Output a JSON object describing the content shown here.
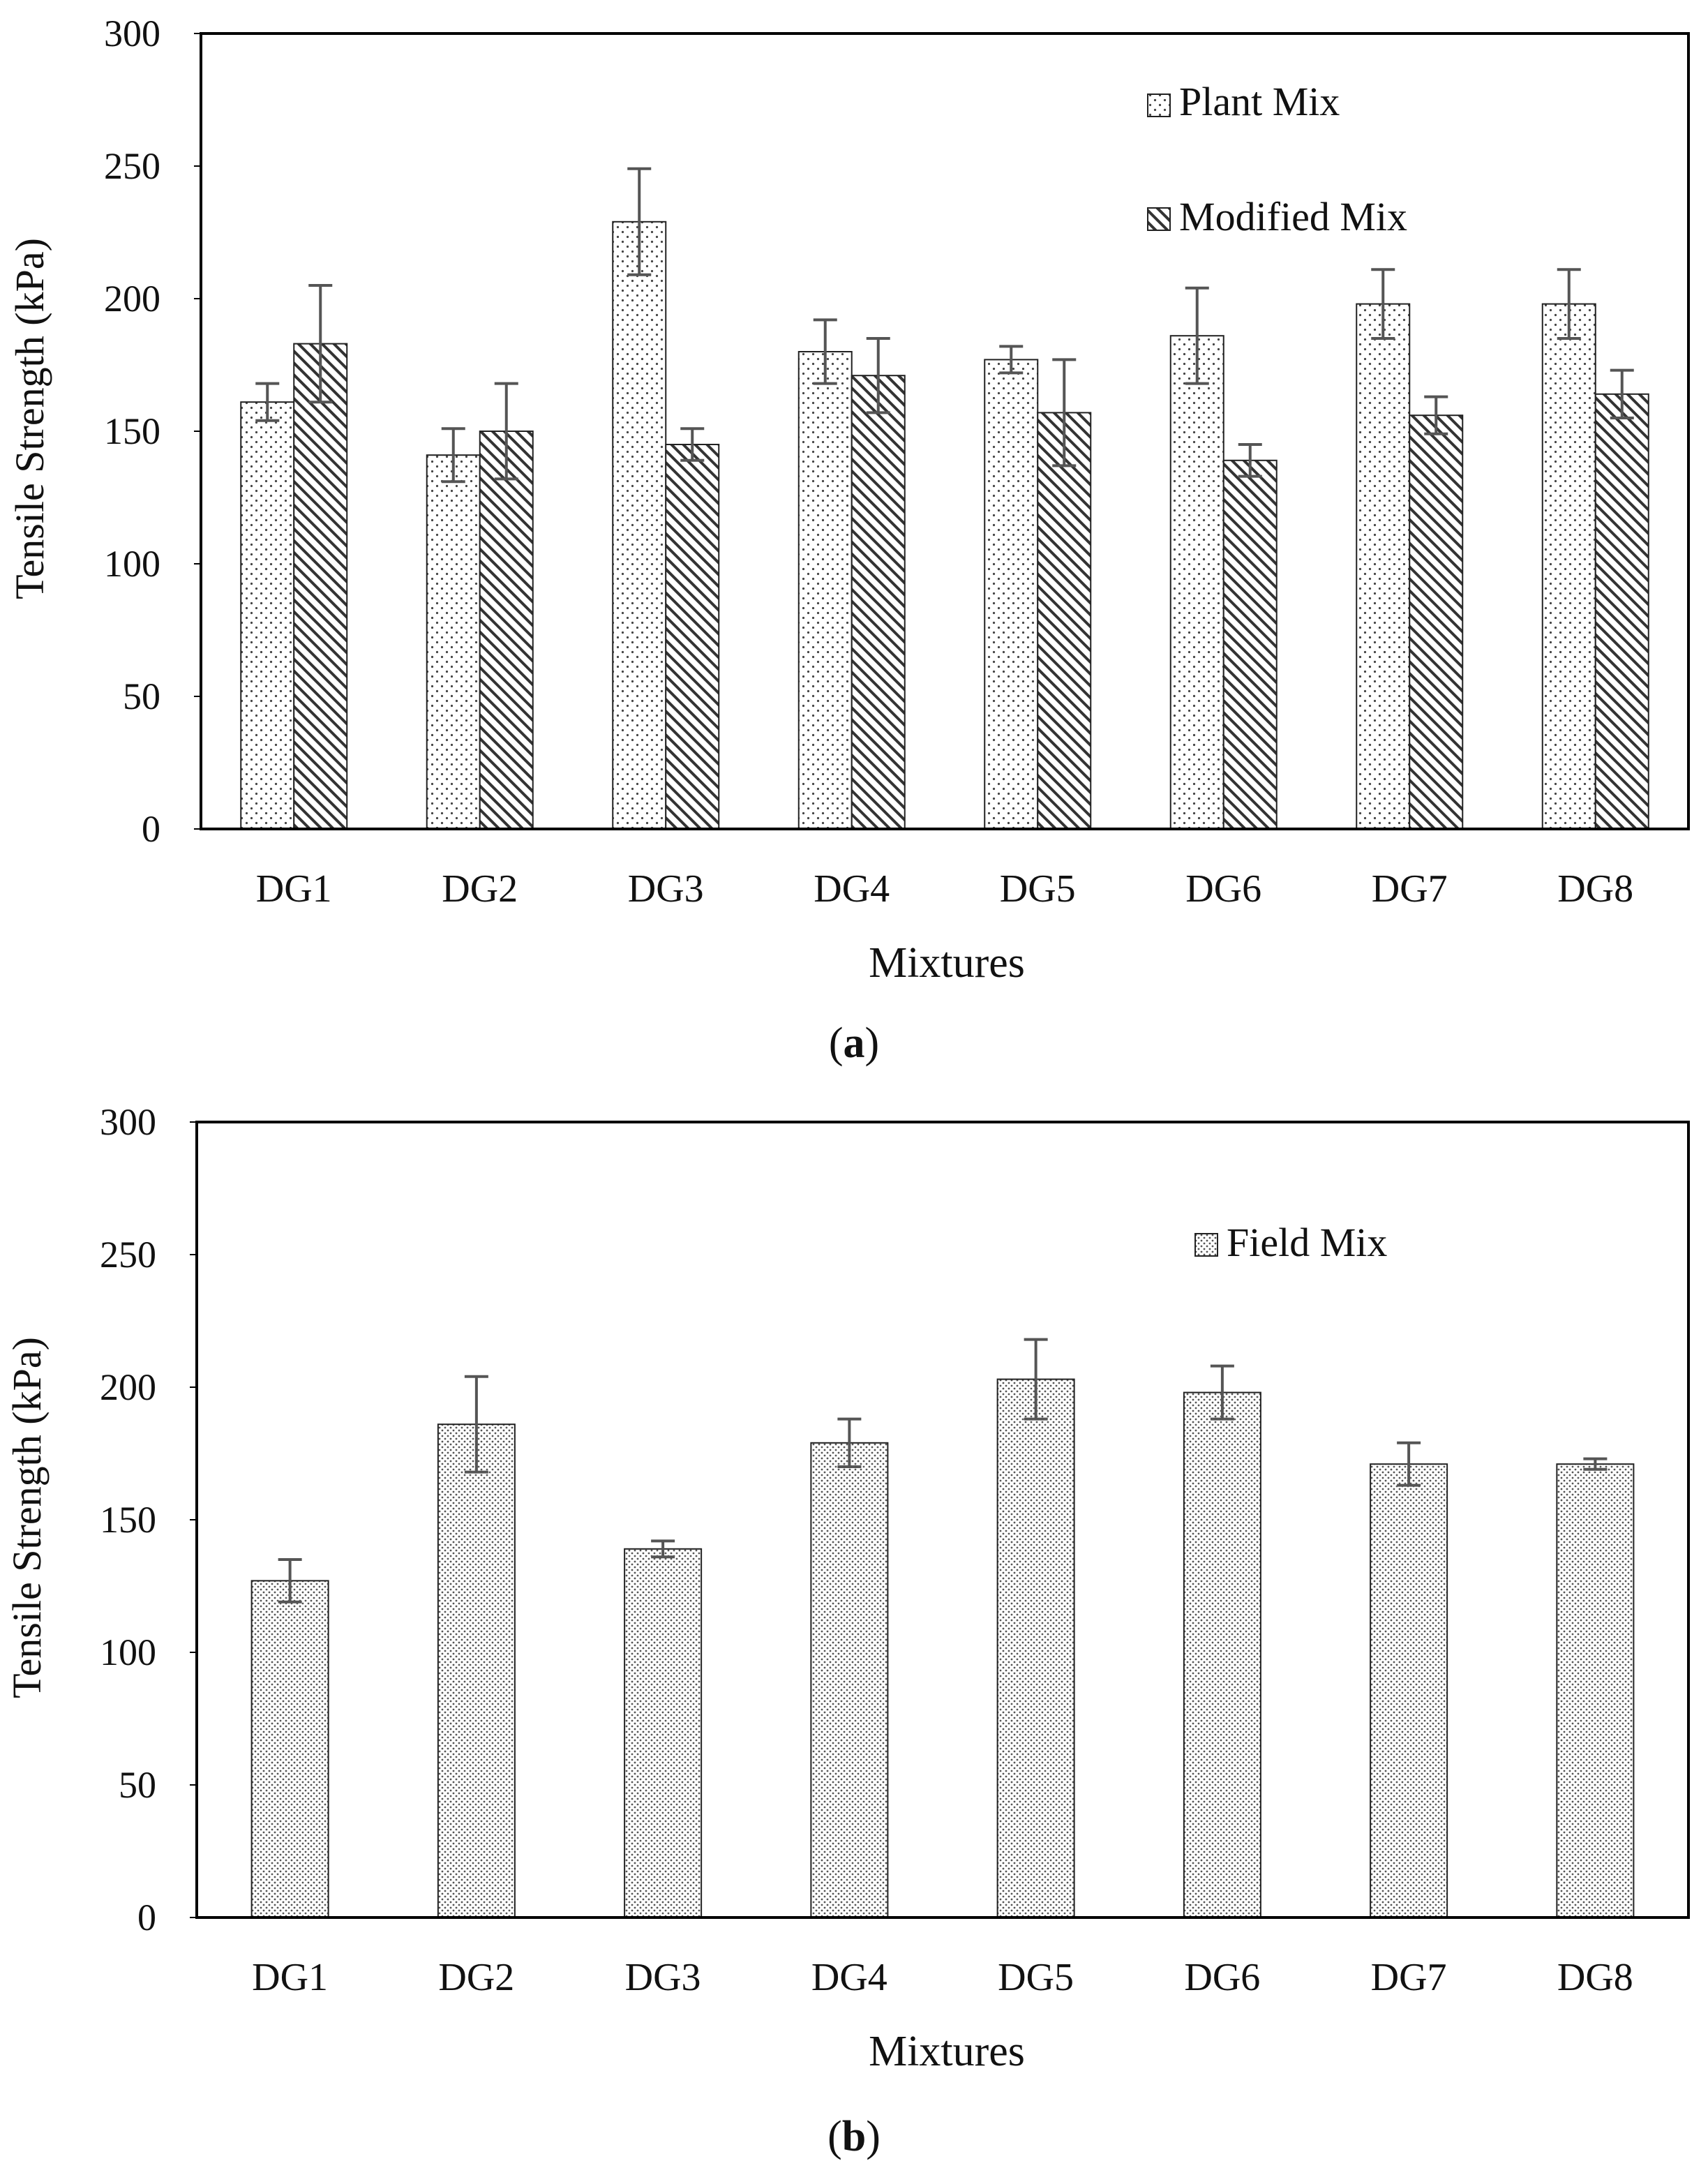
{
  "chart_data": [
    {
      "type": "bar",
      "panel_label": "(a)",
      "panel_letter": "a",
      "xlabel": "Mixtures",
      "ylabel": "Tensile Strength (kPa)",
      "ylim": [
        0,
        300
      ],
      "yticks": [
        0,
        50,
        100,
        150,
        200,
        250,
        300
      ],
      "grid": false,
      "legend_position": "top-right",
      "categories": [
        "DG1",
        "DG2",
        "DG3",
        "DG4",
        "DG5",
        "DG6",
        "DG7",
        "DG8"
      ],
      "series": [
        {
          "name": "Plant Mix",
          "pattern": "dots",
          "values": [
            161,
            141,
            229,
            180,
            177,
            186,
            198,
            198
          ],
          "errors": [
            7,
            10,
            20,
            12,
            5,
            18,
            13,
            13
          ]
        },
        {
          "name": "Modified Mix",
          "pattern": "hatch",
          "values": [
            183,
            150,
            145,
            171,
            157,
            139,
            156,
            164
          ],
          "errors": [
            22,
            18,
            6,
            14,
            20,
            6,
            7,
            9
          ]
        }
      ]
    },
    {
      "type": "bar",
      "panel_label": "(b)",
      "panel_letter": "b",
      "xlabel": "Mixtures",
      "ylabel": "Tensile Strength (kPa)",
      "ylim": [
        0,
        300
      ],
      "yticks": [
        0,
        50,
        100,
        150,
        200,
        250,
        300
      ],
      "grid": false,
      "legend_position": "top-right",
      "categories": [
        "DG1",
        "DG2",
        "DG3",
        "DG4",
        "DG5",
        "DG6",
        "DG7",
        "DG8"
      ],
      "series": [
        {
          "name": "Field Mix",
          "pattern": "dense-dots",
          "values": [
            127,
            186,
            139,
            179,
            203,
            198,
            171,
            171
          ],
          "errors": [
            8,
            18,
            3,
            9,
            15,
            10,
            8,
            2
          ]
        }
      ]
    }
  ],
  "colors": {
    "axis": "#000000",
    "error_bar": "#555555",
    "bar_stroke": "#222222",
    "background": "#ffffff"
  }
}
